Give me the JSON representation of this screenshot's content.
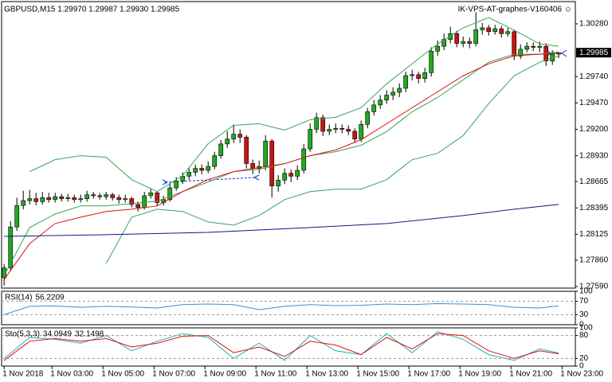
{
  "chart_data": [
    {
      "type": "candlestick",
      "symbol_header": "GBPUSD,M15  1.29970 1.29987 1.29930 1.29985",
      "watermark": "IK-VPS-AT-graphes-V160406 ☺",
      "colors": {
        "up": "#1faa1f",
        "down": "#c81414",
        "wick": "#000000"
      },
      "open": [
        1.2768,
        1.2778,
        1.282,
        1.2842,
        1.2847,
        1.2849,
        1.2846,
        1.285,
        1.2848,
        1.2851,
        1.2849,
        1.285,
        1.2848,
        1.2849,
        1.2853,
        1.2852,
        1.2851,
        1.2853,
        1.285,
        1.2848,
        1.2849,
        1.2843,
        1.284,
        1.2852,
        1.2855,
        1.2845,
        1.2848,
        1.286,
        1.2867,
        1.2872,
        1.2876,
        1.288,
        1.2878,
        1.2882,
        1.2893,
        1.2905,
        1.291,
        1.2915,
        1.2912,
        1.2885,
        1.288,
        1.2882,
        1.2908,
        1.2862,
        1.2868,
        1.2875,
        1.2872,
        1.2878,
        1.29,
        1.292,
        1.2932,
        1.2918,
        1.292,
        1.2921,
        1.292,
        1.2918,
        1.291,
        1.2925,
        1.2938,
        1.2945,
        1.295,
        1.2955,
        1.2958,
        1.2962,
        1.2975,
        1.2976,
        1.2972,
        1.2978,
        1.3,
        1.3005,
        1.3012,
        1.3018,
        1.3008,
        1.301,
        1.3008,
        1.3022,
        1.3024,
        1.302,
        1.3023,
        1.3018,
        1.302,
        1.2995,
        1.3002,
        1.3005,
        1.3004,
        1.3005,
        1.299,
        1.2997
      ],
      "high": [
        1.2782,
        1.2826,
        1.285,
        1.2857,
        1.2858,
        1.2855,
        1.2856,
        1.2855,
        1.2855,
        1.2854,
        1.2854,
        1.2853,
        1.2853,
        1.2857,
        1.2856,
        1.2855,
        1.2856,
        1.2855,
        1.2853,
        1.2853,
        1.2851,
        1.2846,
        1.2856,
        1.2859,
        1.2857,
        1.2852,
        1.2865,
        1.2871,
        1.2876,
        1.288,
        1.2884,
        1.2884,
        1.2887,
        1.2897,
        1.2909,
        1.2918,
        1.2925,
        1.292,
        1.2914,
        1.2889,
        1.2888,
        1.2914,
        1.291,
        1.2873,
        1.288,
        1.2879,
        1.2883,
        1.2905,
        1.2926,
        1.2937,
        1.2935,
        1.2925,
        1.2926,
        1.2925,
        1.2924,
        1.2921,
        1.2929,
        1.2942,
        1.295,
        1.2955,
        1.296,
        1.2963,
        1.2967,
        1.2979,
        1.2981,
        1.2979,
        1.2983,
        1.3004,
        1.3011,
        1.3018,
        1.3025,
        1.3021,
        1.3015,
        1.3014,
        1.304,
        1.3029,
        1.3027,
        1.3027,
        1.3026,
        1.3024,
        1.3022,
        1.3007,
        1.3009,
        1.3009,
        1.301,
        1.3008,
        1.3001,
        1.29987
      ],
      "low": [
        1.276,
        1.2775,
        1.2816,
        1.2838,
        1.2843,
        1.2842,
        1.2843,
        1.2845,
        1.2845,
        1.2846,
        1.2846,
        1.2845,
        1.2845,
        1.2846,
        1.2849,
        1.2848,
        1.2848,
        1.2847,
        1.2844,
        1.2845,
        1.284,
        1.2836,
        1.2838,
        1.2849,
        1.2841,
        1.2842,
        1.2846,
        1.2857,
        1.2864,
        1.2868,
        1.2872,
        1.2874,
        1.2875,
        1.2879,
        1.289,
        1.2901,
        1.2906,
        1.2906,
        1.288,
        1.2874,
        1.2875,
        1.2878,
        1.285,
        1.2856,
        1.2864,
        1.2866,
        1.2868,
        1.2875,
        1.2897,
        1.2916,
        1.2913,
        1.2914,
        1.2916,
        1.2916,
        1.2914,
        1.2906,
        1.2907,
        1.2921,
        1.2934,
        1.2941,
        1.2946,
        1.295,
        1.2953,
        1.2958,
        1.297,
        1.2967,
        1.2968,
        1.2974,
        1.2995,
        1.3001,
        1.3008,
        1.3004,
        1.3004,
        1.3003,
        1.3005,
        1.3017,
        1.3016,
        1.3017,
        1.3014,
        1.3015,
        1.2991,
        1.2992,
        1.2999,
        1.3,
        1.2999,
        1.2985,
        1.2986,
        1.2993
      ],
      "close": [
        1.2778,
        1.282,
        1.2842,
        1.2847,
        1.2849,
        1.2846,
        1.285,
        1.2848,
        1.2851,
        1.2849,
        1.285,
        1.2848,
        1.2849,
        1.2853,
        1.2852,
        1.2851,
        1.2853,
        1.285,
        1.2848,
        1.2849,
        1.2843,
        1.284,
        1.2852,
        1.2855,
        1.2845,
        1.2848,
        1.286,
        1.2867,
        1.2872,
        1.2876,
        1.288,
        1.2878,
        1.2882,
        1.2893,
        1.2905,
        1.291,
        1.2915,
        1.2912,
        1.2885,
        1.288,
        1.2882,
        1.2908,
        1.2862,
        1.2868,
        1.2875,
        1.2872,
        1.2878,
        1.29,
        1.292,
        1.2932,
        1.2918,
        1.292,
        1.2921,
        1.292,
        1.2918,
        1.291,
        1.2925,
        1.2938,
        1.2945,
        1.295,
        1.2955,
        1.2958,
        1.2962,
        1.2975,
        1.2976,
        1.2972,
        1.2978,
        1.3,
        1.3005,
        1.3012,
        1.3018,
        1.3008,
        1.301,
        1.3008,
        1.3022,
        1.3024,
        1.302,
        1.3023,
        1.3018,
        1.302,
        1.2995,
        1.3002,
        1.3005,
        1.3004,
        1.3005,
        1.299,
        1.2997,
        1.29985
      ],
      "series": [
        {
          "color": "#3aa35a",
          "x": [
            0,
            4,
            8,
            12,
            16,
            20,
            24,
            28,
            32,
            36,
            40,
            44,
            48,
            52,
            56,
            60,
            64,
            68,
            72,
            76,
            80,
            84,
            87
          ],
          "values": [
            null,
            1.28767,
            1.28889,
            1.2893,
            1.28914,
            1.28685,
            1.28562,
            1.28726,
            1.29053,
            1.29241,
            1.29257,
            1.29192,
            1.29298,
            1.29323,
            1.29421,
            1.29666,
            1.29871,
            1.30075,
            1.30239,
            1.30345,
            1.30215,
            1.30075,
            1.30051
          ]
        },
        {
          "color": "#3aa35a",
          "x": [
            0,
            4,
            8,
            12,
            16,
            20,
            24,
            28,
            32,
            36,
            40,
            44,
            48,
            52,
            56,
            60,
            64,
            68,
            72,
            76,
            80,
            84,
            87
          ],
          "values": [
            1.27703,
            1.28194,
            1.28333,
            1.28415,
            1.28415,
            1.2844,
            1.28464,
            1.28562,
            1.2866,
            1.28767,
            1.28791,
            1.28848,
            1.2893,
            1.28971,
            1.29037,
            1.29176,
            1.2938,
            1.29527,
            1.29707,
            1.29887,
            1.29969,
            1.29969,
            1.29994
          ]
        },
        {
          "color": "#3aa35a",
          "x": [
            0,
            4,
            8,
            12,
            16,
            20,
            24,
            28,
            32,
            36,
            40,
            44,
            48,
            52,
            56,
            60,
            64,
            68,
            72,
            76,
            80,
            84,
            87
          ],
          "values": [
            null,
            null,
            null,
            null,
            1.27826,
            1.283,
            1.28382,
            1.28358,
            1.28251,
            1.28219,
            1.28317,
            1.2848,
            1.28562,
            1.28587,
            1.28587,
            1.28685,
            1.28889,
            1.28955,
            1.29135,
            1.29462,
            1.29748,
            1.29887,
            1.29953
          ]
        },
        {
          "color": "#e01010",
          "x": [
            0,
            4,
            8,
            12,
            16,
            20,
            24,
            28,
            32,
            36,
            40,
            44,
            48,
            52,
            56,
            60,
            64,
            68,
            72,
            76,
            80,
            84,
            87
          ],
          "values": [
            1.27662,
            1.2803,
            1.28235,
            1.283,
            1.28358,
            1.28382,
            1.28415,
            1.28562,
            1.28685,
            1.28767,
            1.28808,
            1.28848,
            1.2893,
            1.28988,
            1.29094,
            1.29257,
            1.29421,
            1.29585,
            1.29748,
            1.29871,
            1.29953,
            1.29969,
            1.29977
          ]
        },
        {
          "color": "#0a1a8c",
          "x": [
            0,
            16,
            32,
            48,
            60,
            72,
            80,
            87
          ],
          "values": [
            1.28104,
            1.28121,
            1.28145,
            1.28194,
            1.28235,
            1.28317,
            1.28382,
            1.28431
          ]
        }
      ],
      "price_label": {
        "value": 1.29985,
        "label": "1.29985"
      },
      "xlim": [
        -0.4,
        89.6
      ],
      "xticks": [
        {
          "value": 0,
          "label": "1 Nov 2018"
        },
        {
          "value": 7.5,
          "label": "1 Nov 03:00"
        },
        {
          "value": 15.5,
          "label": "1 Nov 05:00"
        },
        {
          "value": 23.5,
          "label": "1 Nov 07:00"
        },
        {
          "value": 31.5,
          "label": "1 Nov 09:00"
        },
        {
          "value": 39.5,
          "label": "1 Nov 11:00"
        },
        {
          "value": 47.5,
          "label": "1 Nov 13:00"
        },
        {
          "value": 55.5,
          "label": "1 Nov 15:00"
        },
        {
          "value": 63.5,
          "label": "1 Nov 17:00"
        },
        {
          "value": 71.5,
          "label": "1 Nov 19:00"
        },
        {
          "value": 79.5,
          "label": "1 Nov 21:00"
        },
        {
          "value": 87.5,
          "label": "1 Nov 23:00"
        }
      ],
      "ylim": [
        1.27574,
        1.30508
      ],
      "yticks": [
        {
          "value": 1.3028,
          "label": "1.30280"
        },
        {
          "value": 1.2974,
          "label": "1.29740"
        },
        {
          "value": 1.2947,
          "label": "1.29470"
        },
        {
          "value": 1.292,
          "label": "1.29200"
        },
        {
          "value": 1.2893,
          "label": "1.28930"
        },
        {
          "value": 1.28665,
          "label": "1.28665"
        },
        {
          "value": 1.28395,
          "label": "1.28395"
        },
        {
          "value": 1.28125,
          "label": "1.28125"
        },
        {
          "value": 1.2786,
          "label": "1.27860"
        },
        {
          "value": 1.2759,
          "label": "1.27590"
        }
      ],
      "grid": false
    },
    {
      "type": "line",
      "indicator": "RSI(14)",
      "series": [
        {
          "color": "#3c8fd6",
          "x": [
            0,
            4,
            8,
            12,
            16,
            20,
            24,
            28,
            32,
            36,
            40,
            44,
            48,
            52,
            56,
            60,
            64,
            68,
            72,
            76,
            80,
            84,
            87
          ],
          "values": [
            30,
            55,
            56,
            52,
            55,
            53,
            50,
            60,
            62,
            60,
            45,
            55,
            60,
            57,
            58,
            62,
            60,
            63,
            62,
            60,
            52,
            50,
            56.2209
          ]
        }
      ],
      "ylim": [
        0,
        100
      ],
      "yticks": [
        100,
        70,
        30,
        0
      ],
      "grid": true
    },
    {
      "type": "line",
      "indicator": "Sto(5,3,3)",
      "series": [
        {
          "color": "#20b2aa",
          "x": [
            0,
            4,
            8,
            12,
            16,
            20,
            24,
            28,
            32,
            36,
            40,
            44,
            48,
            52,
            56,
            60,
            64,
            68,
            72,
            76,
            80,
            84,
            87
          ],
          "values": [
            20,
            75,
            70,
            60,
            80,
            40,
            65,
            85,
            75,
            20,
            60,
            15,
            80,
            40,
            30,
            85,
            35,
            90,
            70,
            30,
            15,
            45,
            34.0949
          ]
        },
        {
          "color": "#e01010",
          "x": [
            0,
            4,
            8,
            12,
            16,
            20,
            24,
            28,
            32,
            36,
            40,
            44,
            48,
            52,
            56,
            60,
            64,
            68,
            72,
            76,
            80,
            84,
            87
          ],
          "values": [
            15,
            65,
            72,
            65,
            72,
            50,
            60,
            78,
            80,
            35,
            50,
            25,
            65,
            55,
            30,
            75,
            45,
            85,
            80,
            40,
            20,
            40,
            32.1498
          ]
        }
      ],
      "ylim": [
        0,
        100
      ],
      "yticks": [
        100,
        80,
        20,
        0
      ],
      "grid": true
    }
  ]
}
